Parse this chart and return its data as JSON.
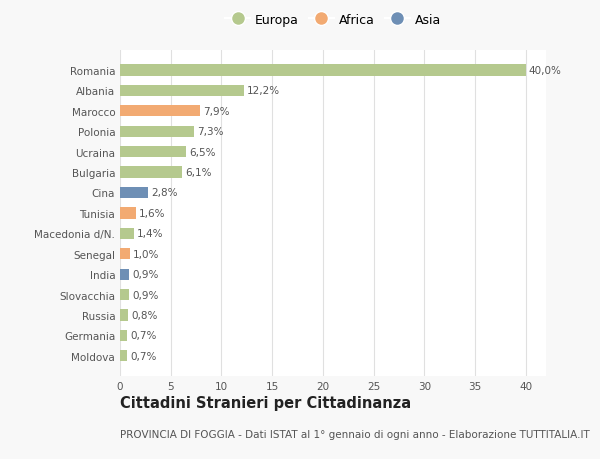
{
  "countries": [
    "Romania",
    "Albania",
    "Marocco",
    "Polonia",
    "Ucraina",
    "Bulgaria",
    "Cina",
    "Tunisia",
    "Macedonia d/N.",
    "Senegal",
    "India",
    "Slovacchia",
    "Russia",
    "Germania",
    "Moldova"
  ],
  "values": [
    40.0,
    12.2,
    7.9,
    7.3,
    6.5,
    6.1,
    2.8,
    1.6,
    1.4,
    1.0,
    0.9,
    0.9,
    0.8,
    0.7,
    0.7
  ],
  "labels": [
    "40,0%",
    "12,2%",
    "7,9%",
    "7,3%",
    "6,5%",
    "6,1%",
    "2,8%",
    "1,6%",
    "1,4%",
    "1,0%",
    "0,9%",
    "0,9%",
    "0,8%",
    "0,7%",
    "0,7%"
  ],
  "continents": [
    "Europa",
    "Europa",
    "Africa",
    "Europa",
    "Europa",
    "Europa",
    "Asia",
    "Africa",
    "Europa",
    "Africa",
    "Asia",
    "Europa",
    "Europa",
    "Europa",
    "Europa"
  ],
  "colors": {
    "Europa": "#b5c98e",
    "Africa": "#f2aa72",
    "Asia": "#6e8fb5"
  },
  "xlim": [
    0,
    42
  ],
  "xticks": [
    0,
    5,
    10,
    15,
    20,
    25,
    30,
    35,
    40
  ],
  "title": "Cittadini Stranieri per Cittadinanza",
  "subtitle": "PROVINCIA DI FOGGIA - Dati ISTAT al 1° gennaio di ogni anno - Elaborazione TUTTITALIA.IT",
  "background_color": "#f8f8f8",
  "plot_background": "#ffffff",
  "grid_color": "#e0e0e0",
  "label_fontsize": 7.5,
  "tick_fontsize": 7.5,
  "ytick_fontsize": 7.5,
  "title_fontsize": 10.5,
  "subtitle_fontsize": 7.5,
  "legend_fontsize": 9,
  "bar_height": 0.55
}
